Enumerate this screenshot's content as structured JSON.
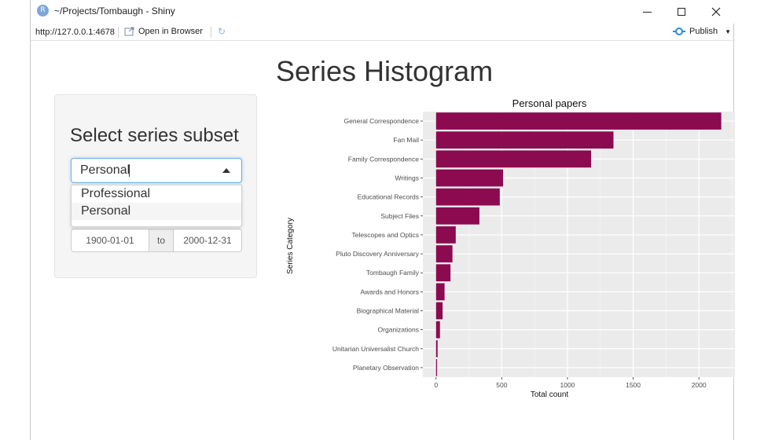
{
  "window": {
    "title": "~/Projects/Tombaugh - Shiny",
    "icon_letter": "R"
  },
  "toolbar": {
    "url": "http://127.0.0.1:4678",
    "open_browser": "Open in Browser",
    "publish": "Publish"
  },
  "page": {
    "title": "Series Histogram"
  },
  "sidebar": {
    "heading": "Select series subset",
    "select_value": "Personal",
    "options": [
      "Professional",
      "Personal"
    ],
    "date_start": "1900-01-01",
    "date_sep": "to",
    "date_end": "2000-12-31"
  },
  "colors": {
    "bar": "#8b0a50",
    "panel": "#ebebeb",
    "focus": "#66afe9"
  },
  "chart_data": {
    "type": "bar",
    "orientation": "horizontal",
    "title": "Personal papers",
    "xlabel": "Total count",
    "ylabel": "Series Category",
    "categories": [
      "General Correspondence",
      "Fan Mail",
      "Family Correspondence",
      "Writings",
      "Educational Records",
      "Subject Files",
      "Telescopes and Optics",
      "Pluto Discovery Anniversary",
      "Tombaugh Family",
      "Awards and Honors",
      "Biographical Material",
      "Organizations",
      "Unitarian Universalist Church",
      "Planetary Observation"
    ],
    "values": [
      2170,
      1350,
      1180,
      510,
      485,
      330,
      150,
      125,
      110,
      65,
      50,
      30,
      12,
      8
    ],
    "xticks": [
      0,
      500,
      1000,
      1500,
      2000
    ],
    "xlim": [
      -100,
      2280
    ],
    "grid": true
  }
}
